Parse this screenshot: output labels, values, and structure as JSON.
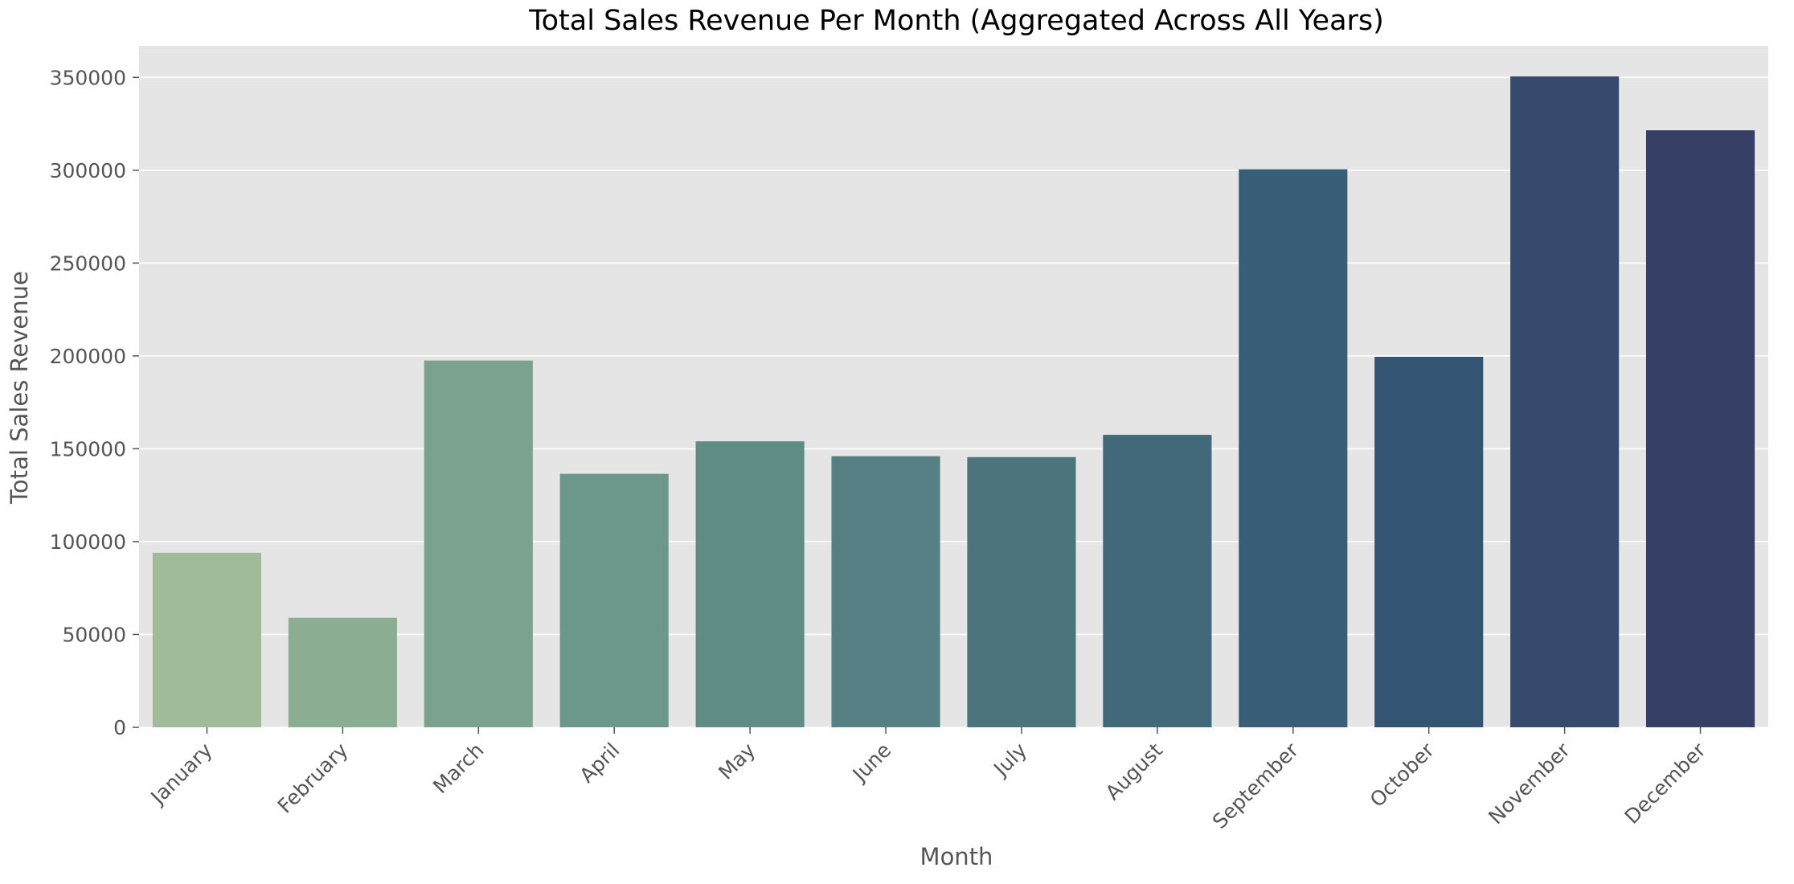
{
  "chart_data": {
    "type": "bar",
    "title": "Total Sales Revenue Per Month (Aggregated Across All Years)",
    "xlabel": "Month",
    "ylabel": "Total Sales Revenue",
    "categories": [
      "January",
      "February",
      "March",
      "April",
      "May",
      "June",
      "July",
      "August",
      "September",
      "October",
      "November",
      "December"
    ],
    "values": [
      94000,
      59000,
      197500,
      136500,
      154000,
      146000,
      145500,
      157500,
      300500,
      199500,
      350500,
      321500
    ],
    "colors": [
      "#9fbb98",
      "#8bae92",
      "#7ba28e",
      "#6c988b",
      "#608c86",
      "#557f83",
      "#4b747d",
      "#416979",
      "#385e78",
      "#345473",
      "#354a6d",
      "#364067"
    ],
    "ylim": [
      0,
      367000
    ],
    "yticks": [
      0,
      50000,
      100000,
      150000,
      200000,
      250000,
      300000,
      350000
    ],
    "ytick_labels": [
      "0",
      "50000",
      "100000",
      "150000",
      "200000",
      "250000",
      "300000",
      "350000"
    ],
    "grid": true,
    "background": "#e5e5e5",
    "grid_color": "#ffffff",
    "legend": "none"
  }
}
